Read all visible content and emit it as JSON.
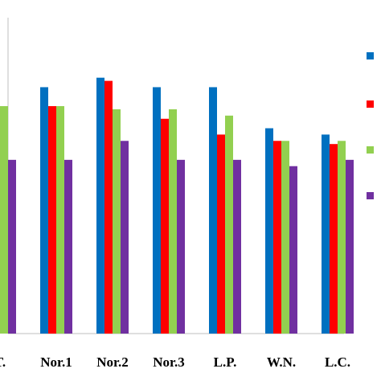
{
  "chart_data": {
    "type": "bar",
    "categories": [
      "T.",
      "Nor.1",
      "Nor.2",
      "Nor.3",
      "L.P.",
      "W.N.",
      "L.C."
    ],
    "series": [
      {
        "values": [
          null,
          78,
          81,
          78,
          78,
          65,
          63
        ],
        "color": "#0070C0"
      },
      {
        "values": [
          null,
          72,
          80,
          68,
          63,
          61,
          60
        ],
        "color": "#FF0000"
      },
      {
        "values": [
          72,
          72,
          71,
          71,
          69,
          61,
          61
        ],
        "color": "#92D050"
      },
      {
        "values": [
          55,
          55,
          61,
          55,
          55,
          53,
          55
        ],
        "color": "#7030A0"
      }
    ],
    "legend_placement": "right",
    "title": "",
    "xlabel": "",
    "ylabel": "",
    "ylim": [
      0,
      100
    ],
    "grid": false
  }
}
